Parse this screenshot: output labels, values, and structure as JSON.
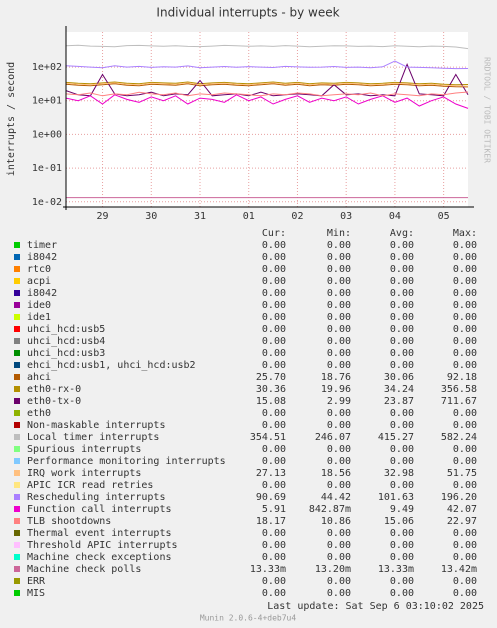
{
  "chart_data": {
    "type": "line",
    "title": "Individual interrupts - by week",
    "y_label": "interrupts / second",
    "side_label": "RRDTOOL / TOBI OETIKER",
    "log_scale": true,
    "grid": true,
    "ylim": [
      0.007,
      1100
    ],
    "yticks": [
      {
        "value": 100,
        "label": "1e+02"
      },
      {
        "value": 10,
        "label": "1e+01"
      },
      {
        "value": 1,
        "label": "1e+00"
      },
      {
        "value": 0.1,
        "label": "1e-01"
      },
      {
        "value": 0.01,
        "label": "1e-02"
      }
    ],
    "categories": [
      null,
      null,
      null,
      "29",
      null,
      null,
      null,
      "30",
      null,
      null,
      null,
      "31",
      null,
      null,
      null,
      "01",
      null,
      null,
      null,
      "02",
      null,
      null,
      null,
      "03",
      null,
      null,
      null,
      "04",
      null,
      null,
      null,
      "05",
      null,
      null
    ],
    "stat_headers": [
      "Cur:",
      "Min:",
      "Avg:",
      "Max:"
    ],
    "series": [
      {
        "name": "timer",
        "color": "#00cc00",
        "stats": [
          "0.00",
          "0.00",
          "0.00",
          "0.00"
        ]
      },
      {
        "name": "i8042",
        "color": "#0066b3",
        "stats": [
          "0.00",
          "0.00",
          "0.00",
          "0.00"
        ]
      },
      {
        "name": "rtc0",
        "color": "#ff8000",
        "stats": [
          "0.00",
          "0.00",
          "0.00",
          "0.00"
        ]
      },
      {
        "name": "acpi",
        "color": "#ffcc00",
        "stats": [
          "0.00",
          "0.00",
          "0.00",
          "0.00"
        ]
      },
      {
        "name": "i8042",
        "color": "#330099",
        "stats": [
          "0.00",
          "0.00",
          "0.00",
          "0.00"
        ]
      },
      {
        "name": "ide0",
        "color": "#990099",
        "stats": [
          "0.00",
          "0.00",
          "0.00",
          "0.00"
        ]
      },
      {
        "name": "ide1",
        "color": "#ccff00",
        "stats": [
          "0.00",
          "0.00",
          "0.00",
          "0.00"
        ]
      },
      {
        "name": "uhci_hcd:usb5",
        "color": "#ff0000",
        "stats": [
          "0.00",
          "0.00",
          "0.00",
          "0.00"
        ]
      },
      {
        "name": "uhci_hcd:usb4",
        "color": "#808080",
        "stats": [
          "0.00",
          "0.00",
          "0.00",
          "0.00"
        ]
      },
      {
        "name": "uhci_hcd:usb3",
        "color": "#008f00",
        "stats": [
          "0.00",
          "0.00",
          "0.00",
          "0.00"
        ]
      },
      {
        "name": "ehci_hcd:usb1, uhci_hcd:usb2",
        "color": "#00487d",
        "stats": [
          "0.00",
          "0.00",
          "0.00",
          "0.00"
        ]
      },
      {
        "name": "ahci",
        "color": "#b35a00",
        "stats": [
          "25.70",
          "18.76",
          "30.06",
          "92.18"
        ],
        "values": [
          31,
          29,
          28,
          30,
          32,
          29,
          28,
          31,
          30,
          29,
          32,
          28,
          30,
          31,
          29,
          28,
          30,
          32,
          29,
          31,
          28,
          30,
          29,
          31,
          30,
          28,
          29,
          31,
          30,
          28,
          29,
          27,
          26,
          25.7
        ]
      },
      {
        "name": "eth0-rx-0",
        "color": "#b38f00",
        "stats": [
          "30.36",
          "19.96",
          "34.24",
          "356.58"
        ],
        "values": [
          35,
          33,
          32,
          34,
          36,
          33,
          32,
          35,
          34,
          33,
          36,
          32,
          34,
          35,
          33,
          32,
          34,
          36,
          33,
          35,
          32,
          34,
          33,
          35,
          34,
          32,
          33,
          35,
          34,
          32,
          33,
          31,
          30,
          30.36
        ]
      },
      {
        "name": "eth0-tx-0",
        "color": "#6b006b",
        "stats": [
          "15.08",
          "2.99",
          "23.87",
          "711.67"
        ],
        "values": [
          20,
          15,
          14,
          60,
          16,
          14,
          15,
          18,
          14,
          16,
          15,
          40,
          14,
          15,
          16,
          14,
          18,
          14,
          15,
          16,
          15,
          14,
          30,
          15,
          16,
          14,
          15,
          14,
          120,
          16,
          15,
          14,
          60,
          15.08
        ]
      },
      {
        "name": "eth0",
        "color": "#8fb300",
        "stats": [
          "0.00",
          "0.00",
          "0.00",
          "0.00"
        ]
      },
      {
        "name": "Non-maskable interrupts",
        "color": "#b30000",
        "stats": [
          "0.00",
          "0.00",
          "0.00",
          "0.00"
        ]
      },
      {
        "name": "Local timer interrupts",
        "color": "#bebebe",
        "stats": [
          "354.51",
          "246.07",
          "415.27",
          "582.24"
        ],
        "values": [
          430,
          445,
          420,
          410,
          400,
          435,
          440,
          425,
          415,
          430,
          410,
          405,
          420,
          440,
          430,
          415,
          425,
          410,
          435,
          420,
          400,
          415,
          430,
          425,
          410,
          420,
          405,
          430,
          415,
          400,
          420,
          410,
          395,
          354.51
        ]
      },
      {
        "name": "Spurious interrupts",
        "color": "#80ff80",
        "stats": [
          "0.00",
          "0.00",
          "0.00",
          "0.00"
        ]
      },
      {
        "name": "Performance monitoring interrupts",
        "color": "#80c9ff",
        "stats": [
          "0.00",
          "0.00",
          "0.00",
          "0.00"
        ]
      },
      {
        "name": "IRQ work interrupts",
        "color": "#ffc080",
        "stats": [
          "27.13",
          "18.56",
          "32.98",
          "51.75"
        ],
        "values": [
          33,
          31,
          30,
          32,
          34,
          31,
          30,
          33,
          32,
          31,
          34,
          30,
          32,
          33,
          31,
          30,
          32,
          34,
          31,
          33,
          30,
          32,
          31,
          33,
          32,
          30,
          31,
          33,
          32,
          30,
          31,
          29,
          28,
          27.13
        ]
      },
      {
        "name": "APIC ICR read retries",
        "color": "#ffe680",
        "stats": [
          "0.00",
          "0.00",
          "0.00",
          "0.00"
        ]
      },
      {
        "name": "Rescheduling interrupts",
        "color": "#aa80ff",
        "stats": [
          "90.69",
          "44.42",
          "101.63",
          "196.20"
        ],
        "values": [
          110,
          105,
          100,
          95,
          110,
          100,
          105,
          98,
          102,
          100,
          108,
          96,
          100,
          104,
          99,
          103,
          100,
          97,
          105,
          101,
          99,
          100,
          104,
          98,
          100,
          96,
          102,
          150,
          100,
          98,
          95,
          92,
          90,
          90.69
        ]
      },
      {
        "name": "Function call interrupts",
        "color": "#ee00cc",
        "stats": [
          "5.91",
          "842.87m",
          "9.49",
          "42.07"
        ],
        "values": [
          12,
          10,
          14,
          8,
          15,
          11,
          9,
          13,
          10,
          14,
          8,
          12,
          11,
          9,
          15,
          10,
          13,
          8,
          11,
          14,
          9,
          12,
          10,
          13,
          8,
          11,
          14,
          9,
          12,
          7,
          10,
          13,
          8,
          5.91
        ]
      },
      {
        "name": "TLB shootdowns",
        "color": "#ff8080",
        "stats": [
          "18.17",
          "10.86",
          "15.06",
          "22.97"
        ],
        "values": [
          16,
          15,
          17,
          14,
          16,
          15,
          18,
          16,
          15,
          17,
          14,
          16,
          15,
          17,
          16,
          15,
          14,
          16,
          15,
          17,
          16,
          14,
          15,
          16,
          15,
          17,
          14,
          16,
          15,
          14,
          16,
          15,
          17,
          18.17
        ]
      },
      {
        "name": "Thermal event interrupts",
        "color": "#666600",
        "stats": [
          "0.00",
          "0.00",
          "0.00",
          "0.00"
        ]
      },
      {
        "name": "Threshold APIC interrupts",
        "color": "#ffbfff",
        "stats": [
          "0.00",
          "0.00",
          "0.00",
          "0.00"
        ]
      },
      {
        "name": "Machine check exceptions",
        "color": "#00ffcc",
        "stats": [
          "0.00",
          "0.00",
          "0.00",
          "0.00"
        ]
      },
      {
        "name": "Machine check polls",
        "color": "#cc6699",
        "stats": [
          "13.33m",
          "13.20m",
          "13.33m",
          "13.42m"
        ],
        "values": [
          0.0133,
          0.0133,
          0.0133,
          0.0133,
          0.0133,
          0.0133,
          0.0133,
          0.0133,
          0.0133,
          0.0133,
          0.0133,
          0.0133,
          0.0133,
          0.0133,
          0.0133,
          0.0133,
          0.0133,
          0.0133,
          0.0133,
          0.0133,
          0.0133,
          0.0133,
          0.0133,
          0.0133,
          0.0133,
          0.0133,
          0.0133,
          0.0133,
          0.0133,
          0.0133,
          0.0133,
          0.0133,
          0.0133,
          0.0133
        ]
      },
      {
        "name": "ERR",
        "color": "#999900",
        "stats": [
          "0.00",
          "0.00",
          "0.00",
          "0.00"
        ]
      },
      {
        "name": "MIS",
        "color": "#00cc00",
        "stats": [
          "0.00",
          "0.00",
          "0.00",
          "0.00"
        ]
      }
    ],
    "last_update": "Last update:  Sat Sep  6 03:10:02 2025",
    "version": "Munin 2.0.6-4+deb7u4"
  }
}
